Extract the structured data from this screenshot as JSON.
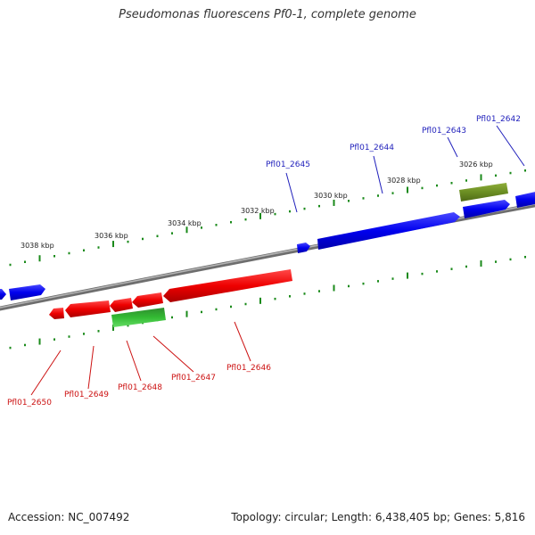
{
  "title": "Pseudomonas fluorescens Pf0-1, complete genome",
  "footer": {
    "accession": "Accession: NC_007492",
    "summary": "Topology: circular; Length: 6,438,405 bp; Genes: 5,816"
  },
  "colors": {
    "forward_gene": "#0000ee",
    "reverse_gene": "#ee0000",
    "rna_gene": "#33bb33",
    "pseudo_gene": "#6b8e23",
    "backbone": "#888888",
    "tick": "#1a8a1a",
    "forward_label": "#1f1fbb",
    "reverse_label": "#cc1111"
  },
  "scale": {
    "tick_labels": [
      "3038 kbp",
      "3036 kbp",
      "3034 kbp",
      "3032 kbp",
      "3030 kbp",
      "3028 kbp",
      "3026 kbp"
    ]
  },
  "genes": {
    "forward_labels": [
      "Pfl01_2645",
      "Pfl01_2644",
      "Pfl01_2643",
      "Pfl01_2642"
    ],
    "reverse_labels": [
      "Pfl01_2650",
      "Pfl01_2649",
      "Pfl01_2648",
      "Pfl01_2647",
      "Pfl01_2646"
    ]
  }
}
